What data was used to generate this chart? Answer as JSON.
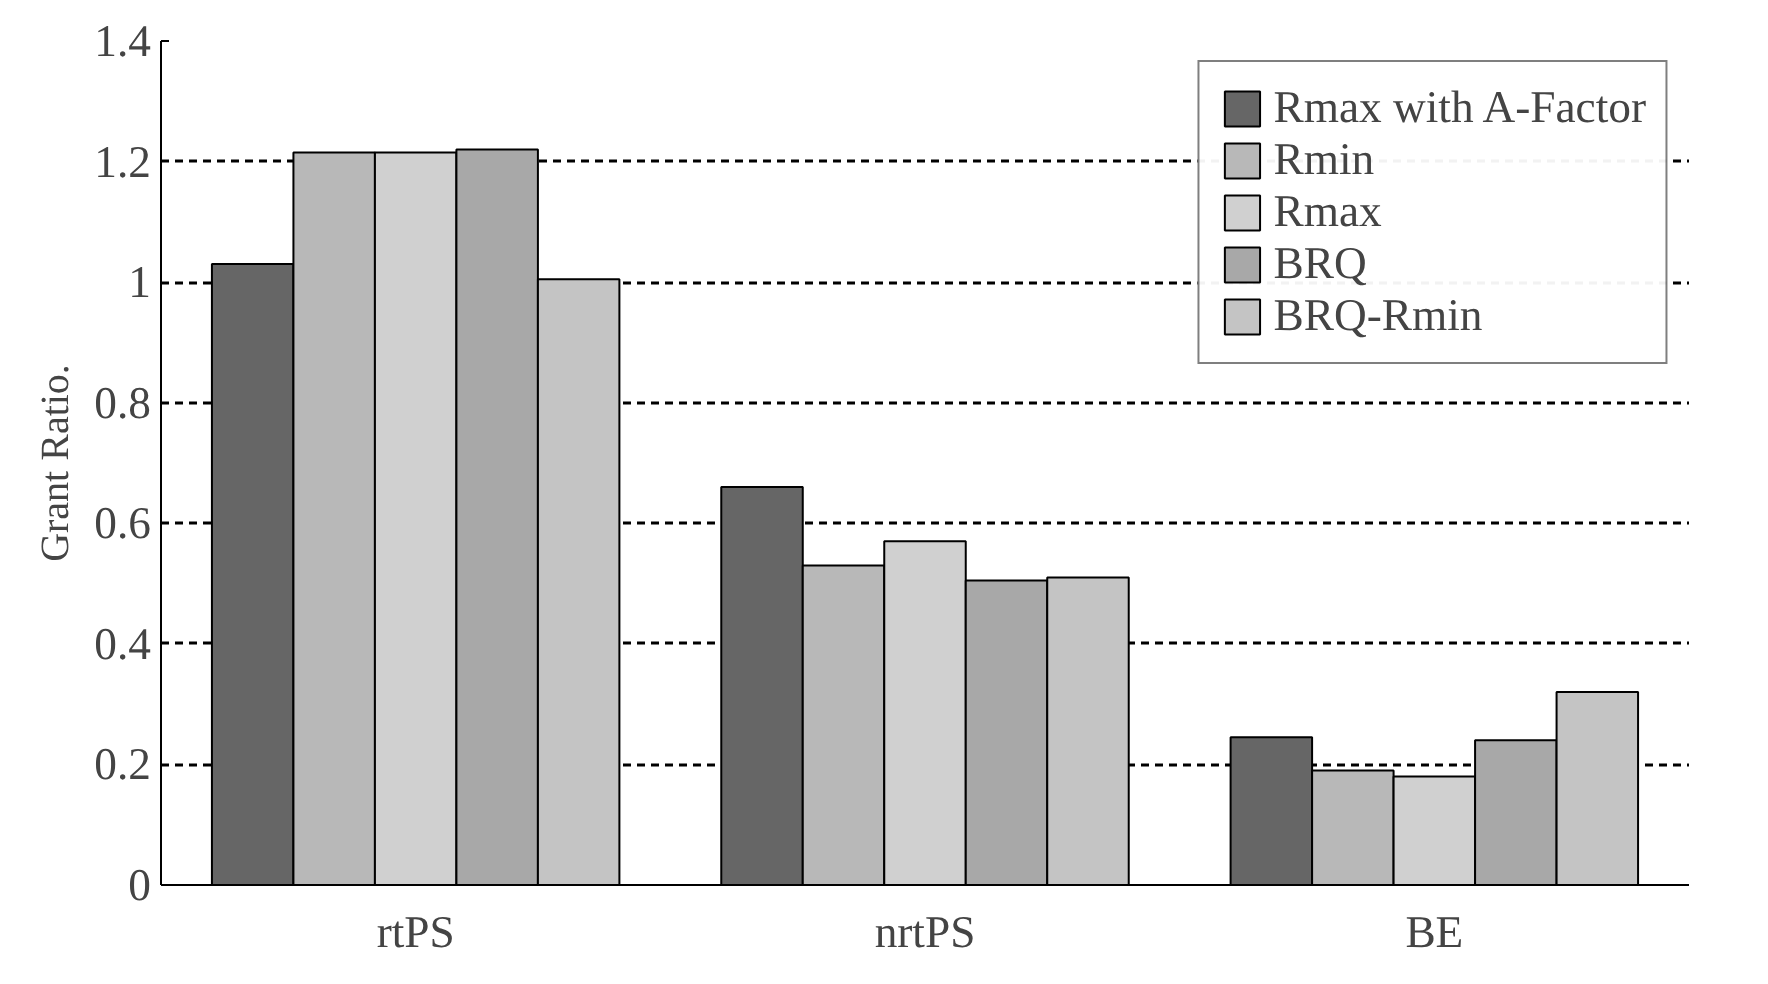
{
  "chart_data": {
    "type": "bar",
    "ylabel": "Grant Ratio.",
    "categories": [
      "rtPS",
      "nrtPS",
      "BE"
    ],
    "series": [
      {
        "name": "Rmax with A-Factor",
        "color": "#666666",
        "values": [
          1.03,
          0.66,
          0.245
        ]
      },
      {
        "name": "Rmin",
        "color": "#b8b8b8",
        "values": [
          1.215,
          0.53,
          0.19
        ]
      },
      {
        "name": "Rmax",
        "color": "#d0d0d0",
        "values": [
          1.215,
          0.57,
          0.18
        ]
      },
      {
        "name": "BRQ",
        "color": "#a8a8a8",
        "values": [
          1.22,
          0.505,
          0.24
        ]
      },
      {
        "name": "BRQ-Rmin",
        "color": "#c4c4c4",
        "values": [
          1.005,
          0.51,
          0.32
        ]
      }
    ],
    "ylim": [
      0,
      1.4
    ],
    "yticks": [
      0,
      0.2,
      0.4,
      0.6,
      0.8,
      1,
      1.2,
      1.4
    ],
    "grid": "y",
    "legend": "top right"
  }
}
